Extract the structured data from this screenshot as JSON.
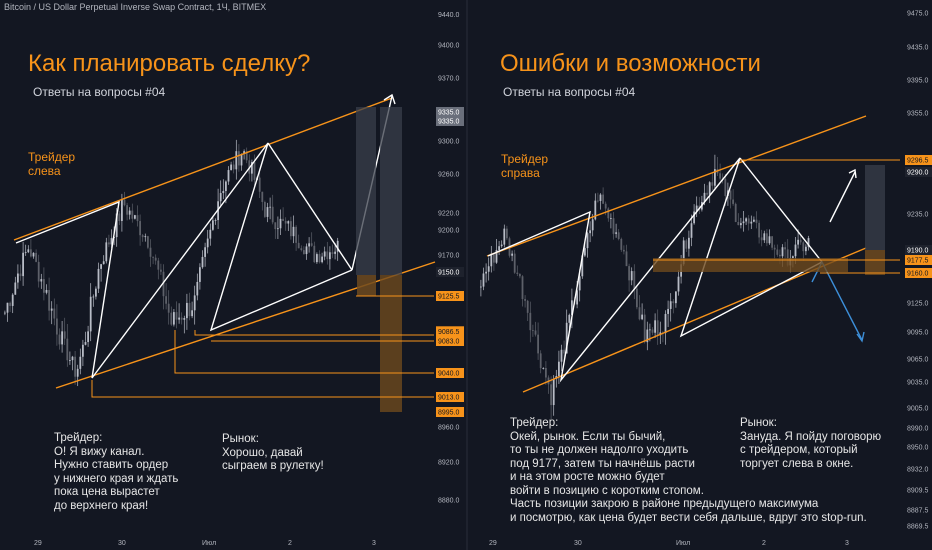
{
  "header": {
    "symbol_line": "Bitcoin / US Dollar Perpetual Inverse Swap Contract, 1Ч, BITMEX"
  },
  "left_panel": {
    "title": "Как планировать сделку?",
    "subtitle": "Ответы на вопросы #04",
    "trader_label": [
      "Трейдер",
      "слева"
    ],
    "note_trader": [
      "Трейдер:",
      "О! Я вижу канал.",
      "Нужно ставить ордер",
      "у нижнего края и ждать",
      "пока цена вырастет",
      "до верхнего края!"
    ],
    "note_market": [
      "Рынок:",
      "Хорошо, давай",
      "сыграем в рулетку!"
    ]
  },
  "right_panel": {
    "title": "Ошибки и возможности",
    "subtitle": "Ответы на вопросы #04",
    "trader_label": [
      "Трейдер",
      "справа"
    ],
    "note_trader": [
      "Трейдер:",
      "Окей, рынок. Если ты бычий,",
      "то ты не должен надолго уходить",
      "под 9177, затем ты начнёшь расти",
      "и на этом росте можно будет",
      "войти в позицию с коротким стопом.",
      "Часть позиции закрою в районе предыдущего максимума",
      "и посмотрю, как цена будет вести себя дальше, вдруг это stop-run."
    ],
    "note_market": [
      "Рынок:",
      "Зануда. Я пойду поговорю",
      "с трейдером, который",
      "торгует слева в окне."
    ]
  },
  "colors": {
    "background": "#131722",
    "accent": "#f7931a",
    "up": "#b8bcc6",
    "down": "#5d6069",
    "text": "#d1d4dc",
    "blue_arrow": "#3d8fd9"
  },
  "chart_data": [
    {
      "type": "candlestick",
      "panel": "left",
      "y_axis_ticks": [
        9440.0,
        9400.0,
        9370.0,
        9335.0,
        9300.0,
        9260.0,
        9220.0,
        9200.0,
        9170.0,
        9150.0,
        9125.5,
        9083.0,
        9040.0,
        9013.0,
        8995.0,
        8960.0,
        8920.0,
        8880.0
      ],
      "price_labels": [
        {
          "value": "9335.0",
          "style": "gray"
        },
        {
          "value": "9335.0",
          "style": "gray"
        },
        {
          "value": "9150.0",
          "style": "dark"
        },
        {
          "value": "9125.5",
          "style": "orange"
        },
        {
          "value": "9086.5",
          "style": "orange"
        },
        {
          "value": "9083.0",
          "style": "orange"
        },
        {
          "value": "9040.0",
          "style": "orange"
        },
        {
          "value": "9013.0",
          "style": "orange"
        },
        {
          "value": "8995.0",
          "style": "orange"
        }
      ],
      "x_axis_ticks": [
        "29",
        "30",
        "Июл",
        "2",
        "3"
      ],
      "channel": {
        "lower": [
          8995,
          9150
        ],
        "upper": [
          9150,
          9335
        ]
      },
      "zigzag": [
        9170,
        9220,
        9040,
        9260,
        9083,
        9300,
        9150,
        9335
      ],
      "ylim": [
        8860,
        9460
      ]
    },
    {
      "type": "candlestick",
      "panel": "right",
      "y_axis_ticks": [
        9475.0,
        9435.0,
        9395.0,
        9355.0,
        9296.5,
        9290.0,
        9235.0,
        9190.0,
        9177.5,
        9160.0,
        9125.0,
        9095.0,
        9065.0,
        9035.0,
        9005.0,
        8990.0,
        8950.0,
        8932.0,
        8909.5,
        8887.5,
        8869.5
      ],
      "price_labels": [
        {
          "value": "9296.5",
          "style": "orange"
        },
        {
          "value": "9290.0",
          "style": "dark"
        },
        {
          "value": "9190.0",
          "style": "dark"
        },
        {
          "value": "9177.5",
          "style": "orange"
        },
        {
          "value": "9160.0",
          "style": "orange"
        }
      ],
      "x_axis_ticks": [
        "29",
        "30",
        "Июл",
        "2",
        "3"
      ],
      "ylim": [
        8860,
        9480
      ]
    }
  ]
}
